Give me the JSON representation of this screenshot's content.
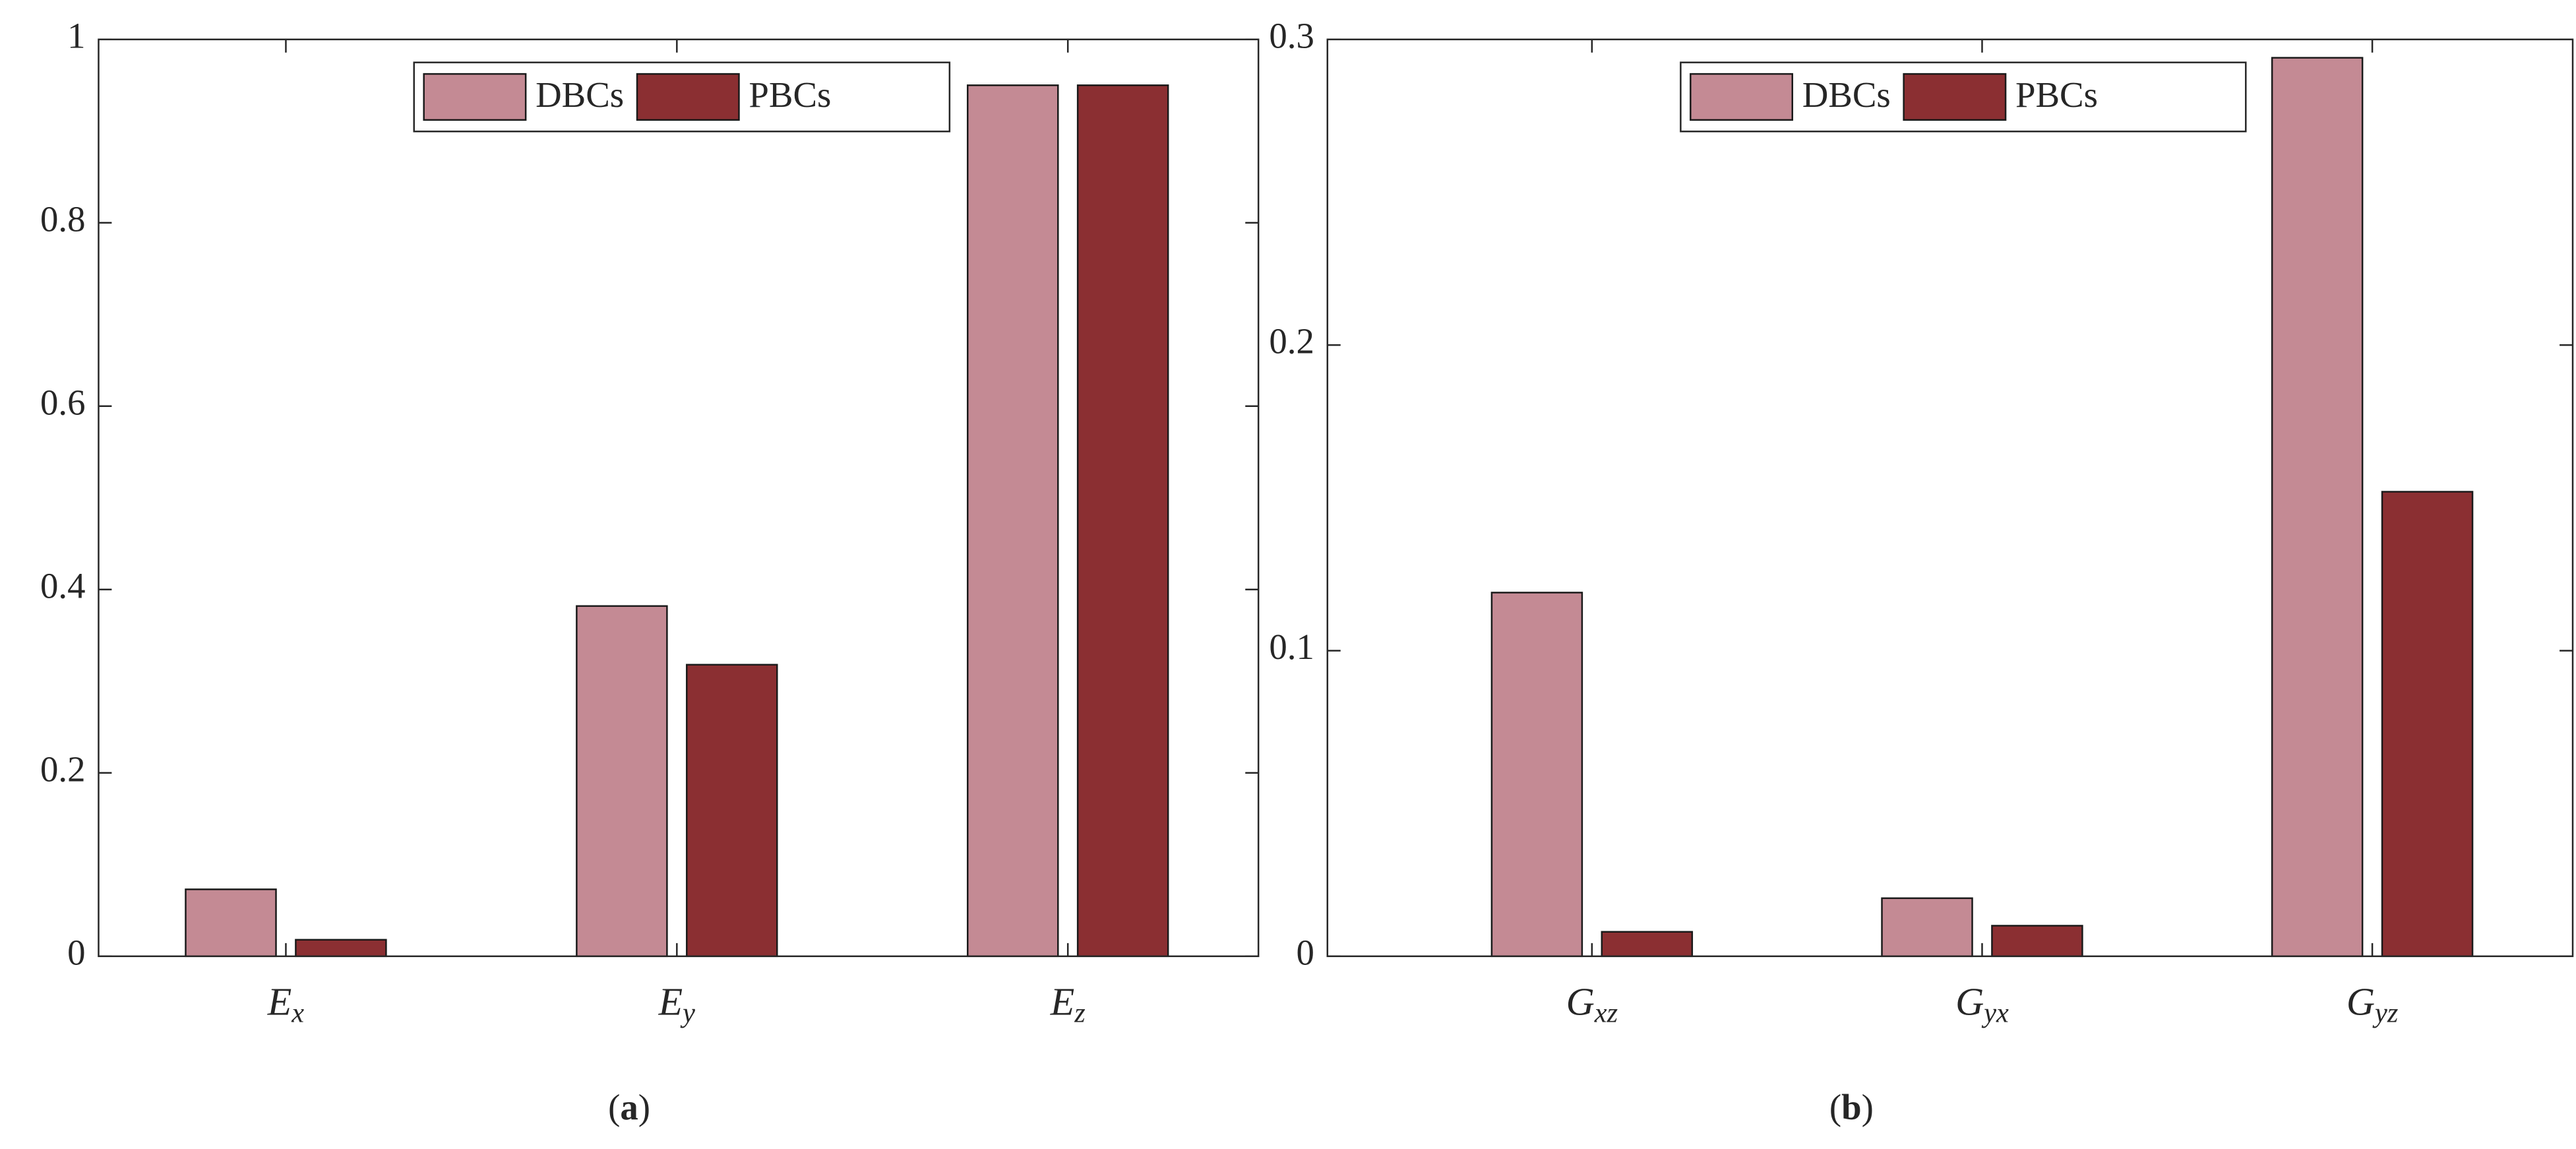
{
  "chart_data": [
    {
      "type": "bar",
      "caption": "(a)",
      "categories": [
        "Ex",
        "Ey",
        "Ez"
      ],
      "series": [
        {
          "name": "DBCs",
          "color": "#c48a94",
          "values": [
            0.073,
            0.382,
            0.95
          ]
        },
        {
          "name": "PBCs",
          "color": "#8b2f32",
          "values": [
            0.018,
            0.318,
            0.95
          ]
        }
      ],
      "ylim": [
        0,
        1
      ],
      "yticks": [
        0,
        0.2,
        0.4,
        0.6,
        0.8,
        1
      ],
      "grid": false,
      "legend": "top-right"
    },
    {
      "type": "bar",
      "caption": "(b)",
      "categories": [
        "Gxz",
        "Gyx",
        "Gyz"
      ],
      "series": [
        {
          "name": "DBCs",
          "color": "#c48a94",
          "values": [
            0.119,
            0.019,
            0.294
          ]
        },
        {
          "name": "PBCs",
          "color": "#8b2f32",
          "values": [
            0.008,
            0.01,
            0.152
          ]
        }
      ],
      "ylim": [
        0,
        0.3
      ],
      "yticks": [
        0,
        0.1,
        0.2,
        0.3
      ],
      "grid": false,
      "legend": "top-right"
    }
  ]
}
